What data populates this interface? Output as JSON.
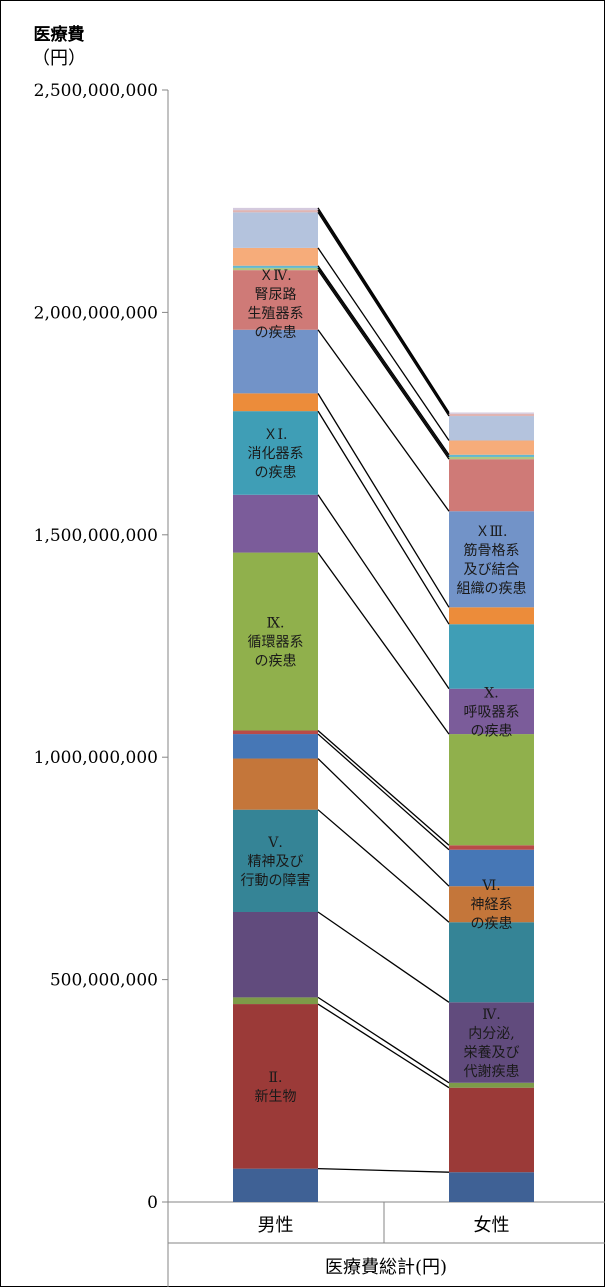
{
  "chart_data": {
    "type": "bar",
    "stacked": true,
    "ylabel": [
      "医療費",
      "（円）"
    ],
    "xlabel": "医療費総計(円)",
    "categories": [
      "男性",
      "女性"
    ],
    "ylim": [
      0,
      2500000000
    ],
    "yticks": [
      {
        "value": 0,
        "label": "0"
      },
      {
        "value": 500000000,
        "label": "500,000,000"
      },
      {
        "value": 1000000000,
        "label": "1,000,000,000"
      },
      {
        "value": 1500000000,
        "label": "1,500,000,000"
      },
      {
        "value": 2000000000,
        "label": "2,000,000,000"
      },
      {
        "value": 2500000000,
        "label": "2,500,000,000"
      }
    ],
    "series_lines": true,
    "series": [
      {
        "color": "#3f6195",
        "values": [
          75000000,
          67000000
        ]
      },
      {
        "color": "#9b3a38",
        "values": [
          370000000,
          190000000
        ],
        "label": [
          "Ⅱ.",
          "新生物"
        ]
      },
      {
        "color": "#7d9b48",
        "values": [
          15000000,
          11000000
        ]
      },
      {
        "color": "#614b7d",
        "values": [
          192000000,
          181000000
        ],
        "label": [
          "Ⅳ.",
          "内分泌,",
          "栄養及び",
          "代謝疾患"
        ]
      },
      {
        "color": "#358496",
        "values": [
          230000000,
          180000000
        ],
        "label": [
          "Ⅴ.",
          "精神及び",
          "行動の障害"
        ]
      },
      {
        "color": "#c4763a",
        "values": [
          115000000,
          81000000
        ],
        "label": [
          "Ⅵ.",
          "神経系",
          "の疾患"
        ]
      },
      {
        "color": "#4677b6",
        "values": [
          55000000,
          82000000
        ]
      },
      {
        "color": "#b94b48",
        "values": [
          8000000,
          10000000
        ]
      },
      {
        "color": "#90b04c",
        "values": [
          400000000,
          250000000
        ],
        "label": [
          "Ⅸ.",
          "循環器系",
          "の疾患"
        ]
      },
      {
        "color": "#7b5c9a",
        "values": [
          130000000,
          102000000
        ],
        "label": [
          "Ⅹ.",
          "呼吸器系",
          "の疾患"
        ]
      },
      {
        "color": "#3f9eb6",
        "values": [
          188000000,
          145000000
        ],
        "label": [
          "ＸⅠ.",
          "消化器系",
          "の疾患"
        ]
      },
      {
        "color": "#ec8c3a",
        "values": [
          40000000,
          38000000
        ]
      },
      {
        "color": "#7293c8",
        "values": [
          143000000,
          216000000
        ],
        "label": [
          "ＸⅢ.",
          "筋骨格系",
          "及び結合",
          "組織の疾患"
        ]
      },
      {
        "color": "#cf7a77",
        "values": [
          134000000,
          117000000
        ],
        "label": [
          "ＸⅣ.",
          "腎尿路",
          "生殖器系",
          "の疾患"
        ]
      },
      {
        "color": "#b2c882",
        "values": [
          5000000,
          5000000
        ]
      },
      {
        "color": "#63b8cf",
        "values": [
          5000000,
          5000000
        ]
      },
      {
        "color": "#f6ac7a",
        "values": [
          40000000,
          32000000
        ]
      },
      {
        "color": "#b4c3dd",
        "values": [
          80000000,
          55000000
        ]
      },
      {
        "color": "#e0b4b2",
        "values": [
          5000000,
          5000000
        ]
      },
      {
        "color": "#d4cade",
        "values": [
          5000000,
          3000000
        ]
      }
    ],
    "label_positions": [
      null,
      0,
      null,
      1,
      0,
      1,
      null,
      null,
      0,
      1,
      0,
      null,
      1,
      0,
      null,
      null,
      null,
      null,
      null,
      null
    ],
    "grid": false,
    "legend": "none"
  }
}
